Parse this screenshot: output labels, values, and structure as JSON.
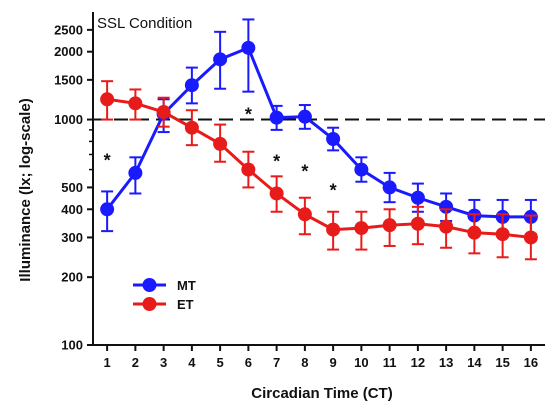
{
  "chart_data": {
    "type": "line",
    "annotation": "SSL Condition",
    "xlabel": "Circadian Time (CT)",
    "ylabel": "Illuminance (lx; log-scale)",
    "yscale": "log",
    "ylim": [
      100,
      3000
    ],
    "xlim": [
      0.5,
      16.5
    ],
    "x": [
      1,
      2,
      3,
      4,
      5,
      6,
      7,
      8,
      9,
      10,
      11,
      12,
      13,
      14,
      15,
      16
    ],
    "x_tick_labels": [
      "1",
      "2",
      "3",
      "4",
      "5",
      "6",
      "7",
      "8",
      "9",
      "10",
      "11",
      "12",
      "13",
      "14",
      "15",
      "16"
    ],
    "y_ticks": [
      100,
      200,
      300,
      400,
      500,
      1000,
      1500,
      2000,
      2500
    ],
    "y_tick_labels": [
      "100",
      "200",
      "300",
      "400",
      "500",
      "1000",
      "1500",
      "2000",
      "2500"
    ],
    "reference_line": 1000,
    "series": [
      {
        "name": "MT",
        "color": "#1a1aff",
        "values": [
          400,
          580,
          1060,
          1420,
          1850,
          2080,
          1020,
          1030,
          820,
          600,
          500,
          450,
          410,
          375,
          370,
          370
        ],
        "error_upper": [
          480,
          680,
          1230,
          1700,
          2450,
          2780,
          1150,
          1160,
          920,
          680,
          580,
          520,
          470,
          440,
          440,
          440
        ],
        "error_lower": [
          320,
          470,
          880,
          1180,
          1370,
          1330,
          900,
          910,
          730,
          530,
          430,
          390,
          355,
          320,
          310,
          310
        ]
      },
      {
        "name": "ET",
        "color": "#e81b1b",
        "values": [
          1230,
          1180,
          1080,
          920,
          780,
          600,
          470,
          380,
          325,
          330,
          340,
          345,
          335,
          315,
          310,
          300
        ],
        "error_upper": [
          1480,
          1360,
          1250,
          1100,
          950,
          720,
          560,
          450,
          390,
          390,
          400,
          410,
          400,
          380,
          380,
          375
        ],
        "error_lower": [
          1000,
          1000,
          930,
          770,
          650,
          500,
          390,
          310,
          265,
          265,
          275,
          280,
          270,
          255,
          245,
          240
        ]
      }
    ],
    "significance": [
      {
        "x": 1,
        "label": "*"
      },
      {
        "x": 6,
        "label": "*"
      },
      {
        "x": 7,
        "label": "*"
      },
      {
        "x": 8,
        "label": "*"
      },
      {
        "x": 9,
        "label": "*"
      }
    ],
    "legend_position": "bottom-left",
    "grid": false
  }
}
